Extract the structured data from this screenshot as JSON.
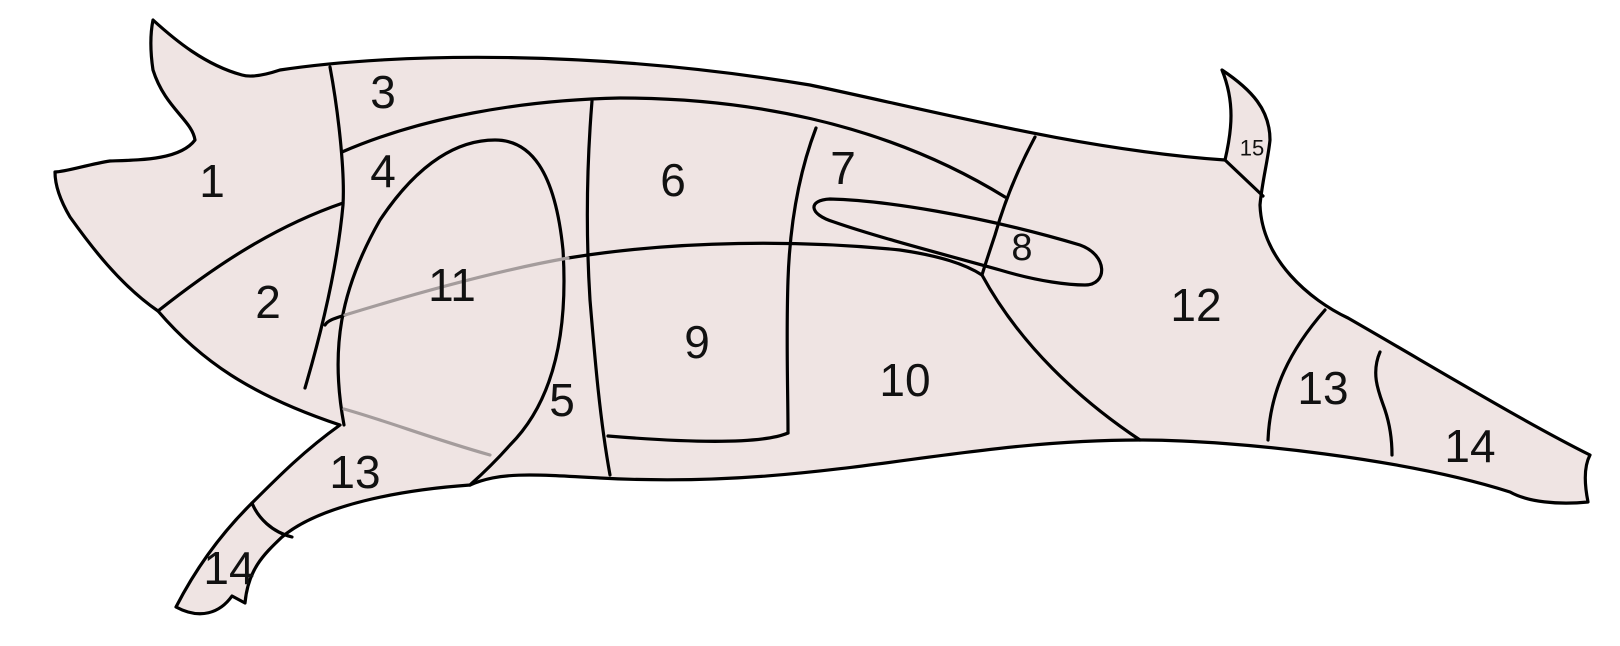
{
  "diagram": {
    "fill_color": "#efe4e3",
    "outline_color": "#000000",
    "labels": {
      "r1": "1",
      "r2": "2",
      "r3": "3",
      "r4": "4",
      "r5": "5",
      "r6": "6",
      "r7": "7",
      "r8": "8",
      "r9": "9",
      "r10": "10",
      "r11": "11",
      "r12": "12",
      "r13_front": "13",
      "r13_rear": "13",
      "r14_front": "14",
      "r14_rear": "14",
      "r15": "15"
    }
  }
}
